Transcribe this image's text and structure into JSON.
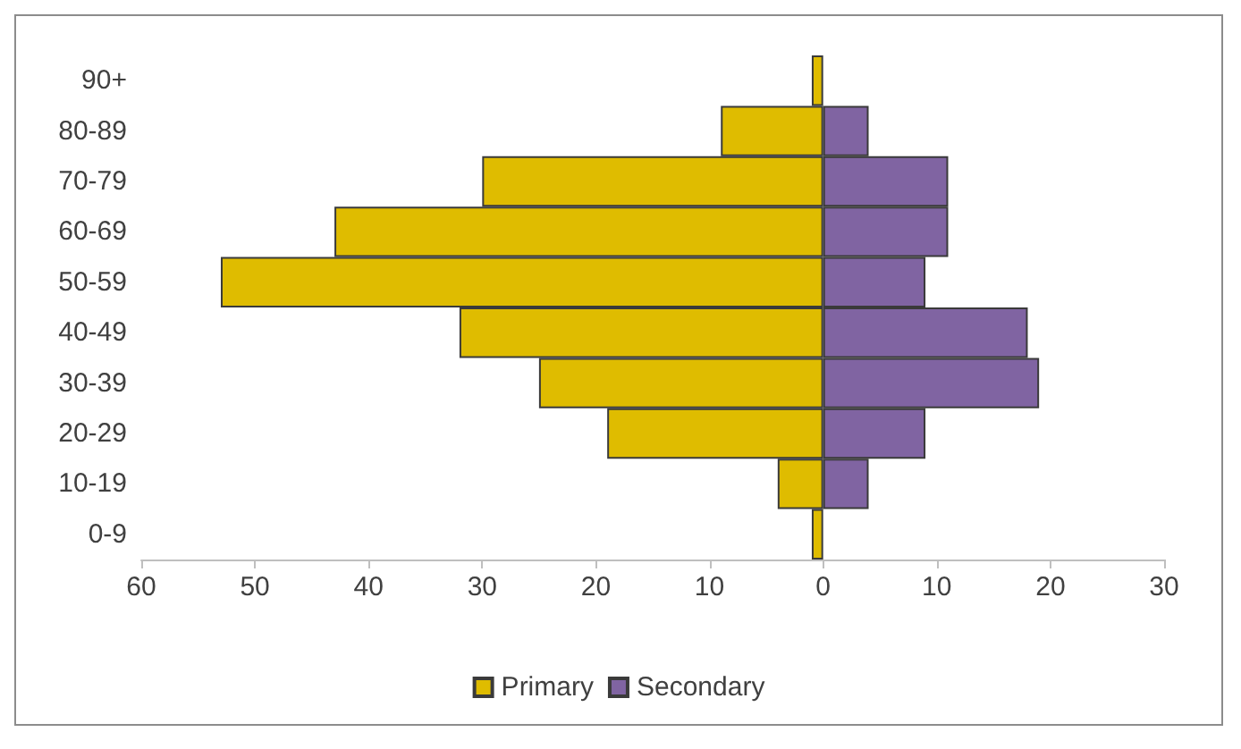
{
  "chart_data": {
    "type": "bar",
    "orientation": "horizontal",
    "categories": [
      "90+",
      "80-89",
      "70-79",
      "60-69",
      "50-59",
      "40-49",
      "30-39",
      "20-29",
      "10-19",
      "0-9"
    ],
    "series": [
      {
        "name": "Primary",
        "color": "#dfbc00",
        "values": [
          -1,
          -9,
          -30,
          -43,
          -53,
          -32,
          -25,
          -19,
          -4,
          -1
        ]
      },
      {
        "name": "Secondary",
        "color": "#8064a2",
        "values": [
          null,
          4,
          11,
          11,
          9,
          18,
          19,
          9,
          4,
          null
        ]
      }
    ],
    "xlim": [
      -60,
      30
    ],
    "xticks": [
      {
        "value": -60,
        "label": "60"
      },
      {
        "value": -50,
        "label": "50"
      },
      {
        "value": -40,
        "label": "40"
      },
      {
        "value": -30,
        "label": "30"
      },
      {
        "value": -20,
        "label": "20"
      },
      {
        "value": -10,
        "label": "10"
      },
      0,
      10,
      20,
      30
    ],
    "grid": false,
    "legend": "bottom",
    "stacked": true
  }
}
